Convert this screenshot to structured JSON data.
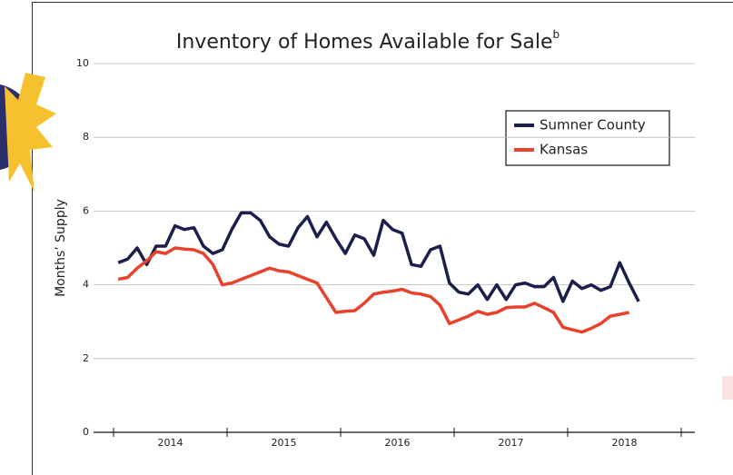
{
  "chart_data": {
    "type": "line",
    "title": "Inventory of Homes Available for Sale",
    "title_superscript": "b",
    "y_label": "Months’ Supply",
    "categories": [
      null,
      null,
      null,
      null,
      null,
      "2014",
      null,
      null,
      null,
      null,
      null,
      null,
      null,
      null,
      null,
      null,
      null,
      "2015",
      null,
      null,
      null,
      null,
      null,
      null,
      null,
      null,
      null,
      null,
      null,
      "2016",
      null,
      null,
      null,
      null,
      null,
      null,
      null,
      null,
      null,
      null,
      null,
      "2017",
      null,
      null,
      null,
      null,
      null,
      null,
      null,
      null,
      null,
      null,
      null,
      "2018",
      null,
      null
    ],
    "series": [
      {
        "name": "Sumner County",
        "color": "#1b1f4b",
        "values": [
          4.6,
          4.7,
          5.0,
          4.55,
          5.05,
          5.05,
          5.6,
          5.5,
          5.55,
          5.05,
          4.85,
          4.95,
          5.5,
          5.95,
          5.95,
          5.75,
          5.3,
          5.1,
          5.05,
          5.55,
          5.85,
          5.3,
          5.7,
          5.25,
          4.85,
          5.35,
          5.25,
          4.8,
          5.75,
          5.5,
          5.4,
          4.55,
          4.5,
          4.95,
          5.05,
          4.05,
          3.8,
          3.75,
          4.0,
          3.6,
          4.0,
          3.6,
          4.0,
          4.05,
          3.95,
          3.95,
          4.2,
          3.55,
          4.1,
          3.9,
          4.0,
          3.85,
          3.95,
          4.6,
          4.05,
          3.55
        ]
      },
      {
        "name": "Kansas",
        "color": "#e8412c",
        "values": [
          4.15,
          4.2,
          4.45,
          4.65,
          4.9,
          4.85,
          5.0,
          4.97,
          4.95,
          4.85,
          4.55,
          4.0,
          4.05,
          4.15,
          4.25,
          4.35,
          4.45,
          4.38,
          4.35,
          4.25,
          4.15,
          4.05,
          3.65,
          3.25,
          3.28,
          3.3,
          3.5,
          3.75,
          3.8,
          3.83,
          3.88,
          3.78,
          3.75,
          3.68,
          3.45,
          2.95,
          3.05,
          3.15,
          3.28,
          3.2,
          3.25,
          3.38,
          3.4,
          3.4,
          3.5,
          3.38,
          3.25,
          2.85,
          2.78,
          2.72,
          2.82,
          2.95,
          3.15,
          3.2,
          3.25,
          null
        ]
      }
    ],
    "ylim": [
      0,
      10
    ],
    "yticks": [
      0,
      2,
      4,
      6,
      8,
      10
    ],
    "grid": true
  }
}
